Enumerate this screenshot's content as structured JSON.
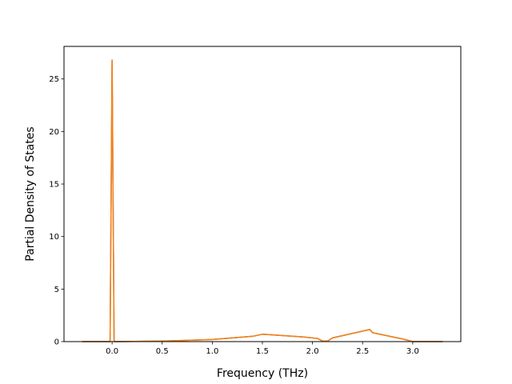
{
  "chart_data": {
    "type": "line",
    "title": "",
    "xlabel": "Frequency (THz)",
    "ylabel": "Partial Density of States",
    "xlim": [
      -0.48,
      3.48
    ],
    "ylim": [
      0,
      28.1
    ],
    "xticks": [
      0.0,
      0.5,
      1.0,
      1.5,
      2.0,
      2.5,
      3.0
    ],
    "xtick_labels": [
      "0.0",
      "0.5",
      "1.0",
      "1.5",
      "2.0",
      "2.5",
      "3.0"
    ],
    "yticks": [
      0,
      5,
      10,
      15,
      20,
      25
    ],
    "ytick_labels": [
      "0",
      "5",
      "10",
      "15",
      "20",
      "25"
    ],
    "grid": false,
    "legend": "none",
    "series": [
      {
        "color": "#1f77b4",
        "x": [
          -0.3,
          -0.02,
          0.0,
          0.02,
          0.05,
          0.5,
          1.0,
          1.4,
          1.5,
          1.9,
          2.05,
          2.1,
          2.15,
          2.2,
          2.5,
          2.57,
          2.6,
          2.7,
          2.9,
          3.0,
          3.3
        ],
        "y": [
          0.0,
          0.0,
          26.8,
          0.0,
          0.0,
          0.05,
          0.2,
          0.5,
          0.7,
          0.45,
          0.3,
          0.05,
          0.05,
          0.35,
          1.0,
          1.15,
          0.85,
          0.65,
          0.25,
          0.0,
          0.0
        ]
      },
      {
        "color": "#ff7f0e",
        "x": [
          -0.3,
          -0.02,
          0.0,
          0.02,
          0.05,
          0.5,
          1.0,
          1.4,
          1.5,
          1.9,
          2.05,
          2.1,
          2.15,
          2.2,
          2.5,
          2.57,
          2.6,
          2.7,
          2.9,
          3.0,
          3.3
        ],
        "y": [
          0.0,
          0.0,
          26.8,
          0.0,
          0.0,
          0.05,
          0.2,
          0.5,
          0.7,
          0.45,
          0.3,
          0.05,
          0.05,
          0.35,
          1.0,
          1.15,
          0.85,
          0.65,
          0.25,
          0.0,
          0.0
        ]
      }
    ]
  }
}
